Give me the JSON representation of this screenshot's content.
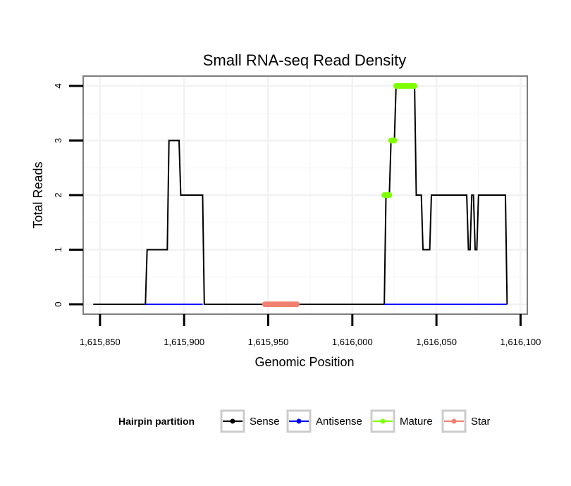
{
  "chart_data": {
    "type": "line",
    "title": "Small RNA-seq Read Density",
    "xlabel": "Genomic Position",
    "ylabel": "Total Reads",
    "xlim": [
      1615840,
      1616104
    ],
    "ylim": [
      -0.18,
      4.18
    ],
    "x_ticks": [
      1615850,
      1615900,
      1615950,
      1616000,
      1616050,
      1616100
    ],
    "x_tick_labels": [
      "1,615,850",
      "1,615,900",
      "1,615,950",
      "1,616,000",
      "1,616,050",
      "1,616,100"
    ],
    "y_ticks": [
      0,
      1,
      2,
      3,
      4
    ],
    "y_tick_labels": [
      "0",
      "1",
      "2",
      "3",
      "4"
    ],
    "grid": true,
    "legend": {
      "title": "Hairpin partition",
      "position": "bottom",
      "entries": [
        {
          "name": "Sense",
          "color": "#000000"
        },
        {
          "name": "Antisense",
          "color": "#0000ff"
        },
        {
          "name": "Mature",
          "color": "#7fff00"
        },
        {
          "name": "Star",
          "color": "#f08070"
        }
      ]
    },
    "series": [
      {
        "name": "Sense",
        "color": "#000000",
        "x": [
          1615846,
          1615877,
          1615878,
          1615890,
          1615891,
          1615897,
          1615898,
          1615911,
          1615912,
          1616019,
          1616020,
          1616022,
          1616023,
          1616025,
          1616026,
          1616037,
          1616038,
          1616041,
          1616042,
          1616046,
          1616047,
          1616068,
          1616069,
          1616070,
          1616071,
          1616072,
          1616073,
          1616074,
          1616075,
          1616091,
          1616092
        ],
        "values": [
          0,
          0,
          1,
          1,
          3,
          3,
          2,
          2,
          0,
          0,
          2,
          2,
          3,
          3,
          4,
          4,
          2,
          2,
          1,
          1,
          2,
          2,
          1,
          1,
          2,
          2,
          1,
          1,
          2,
          2,
          0
        ]
      },
      {
        "name": "Antisense",
        "color": "#0000ff",
        "segments": [
          {
            "x": [
              1615877,
              1615911
            ],
            "values": [
              0,
              0
            ]
          },
          {
            "x": [
              1616019,
              1616092
            ],
            "values": [
              0,
              0
            ]
          }
        ]
      },
      {
        "name": "Mature",
        "color": "#7fff00",
        "segments": [
          {
            "x": [
              1616019,
              1616022
            ],
            "values": [
              2,
              2
            ]
          },
          {
            "x": [
              1616023,
              1616025
            ],
            "values": [
              3,
              3
            ]
          },
          {
            "x": [
              1616026,
              1616037
            ],
            "values": [
              4,
              4
            ]
          }
        ]
      },
      {
        "name": "Star",
        "color": "#f08070",
        "segments": [
          {
            "x": [
              1615948,
              1615967
            ],
            "values": [
              0,
              0
            ]
          }
        ]
      }
    ]
  }
}
